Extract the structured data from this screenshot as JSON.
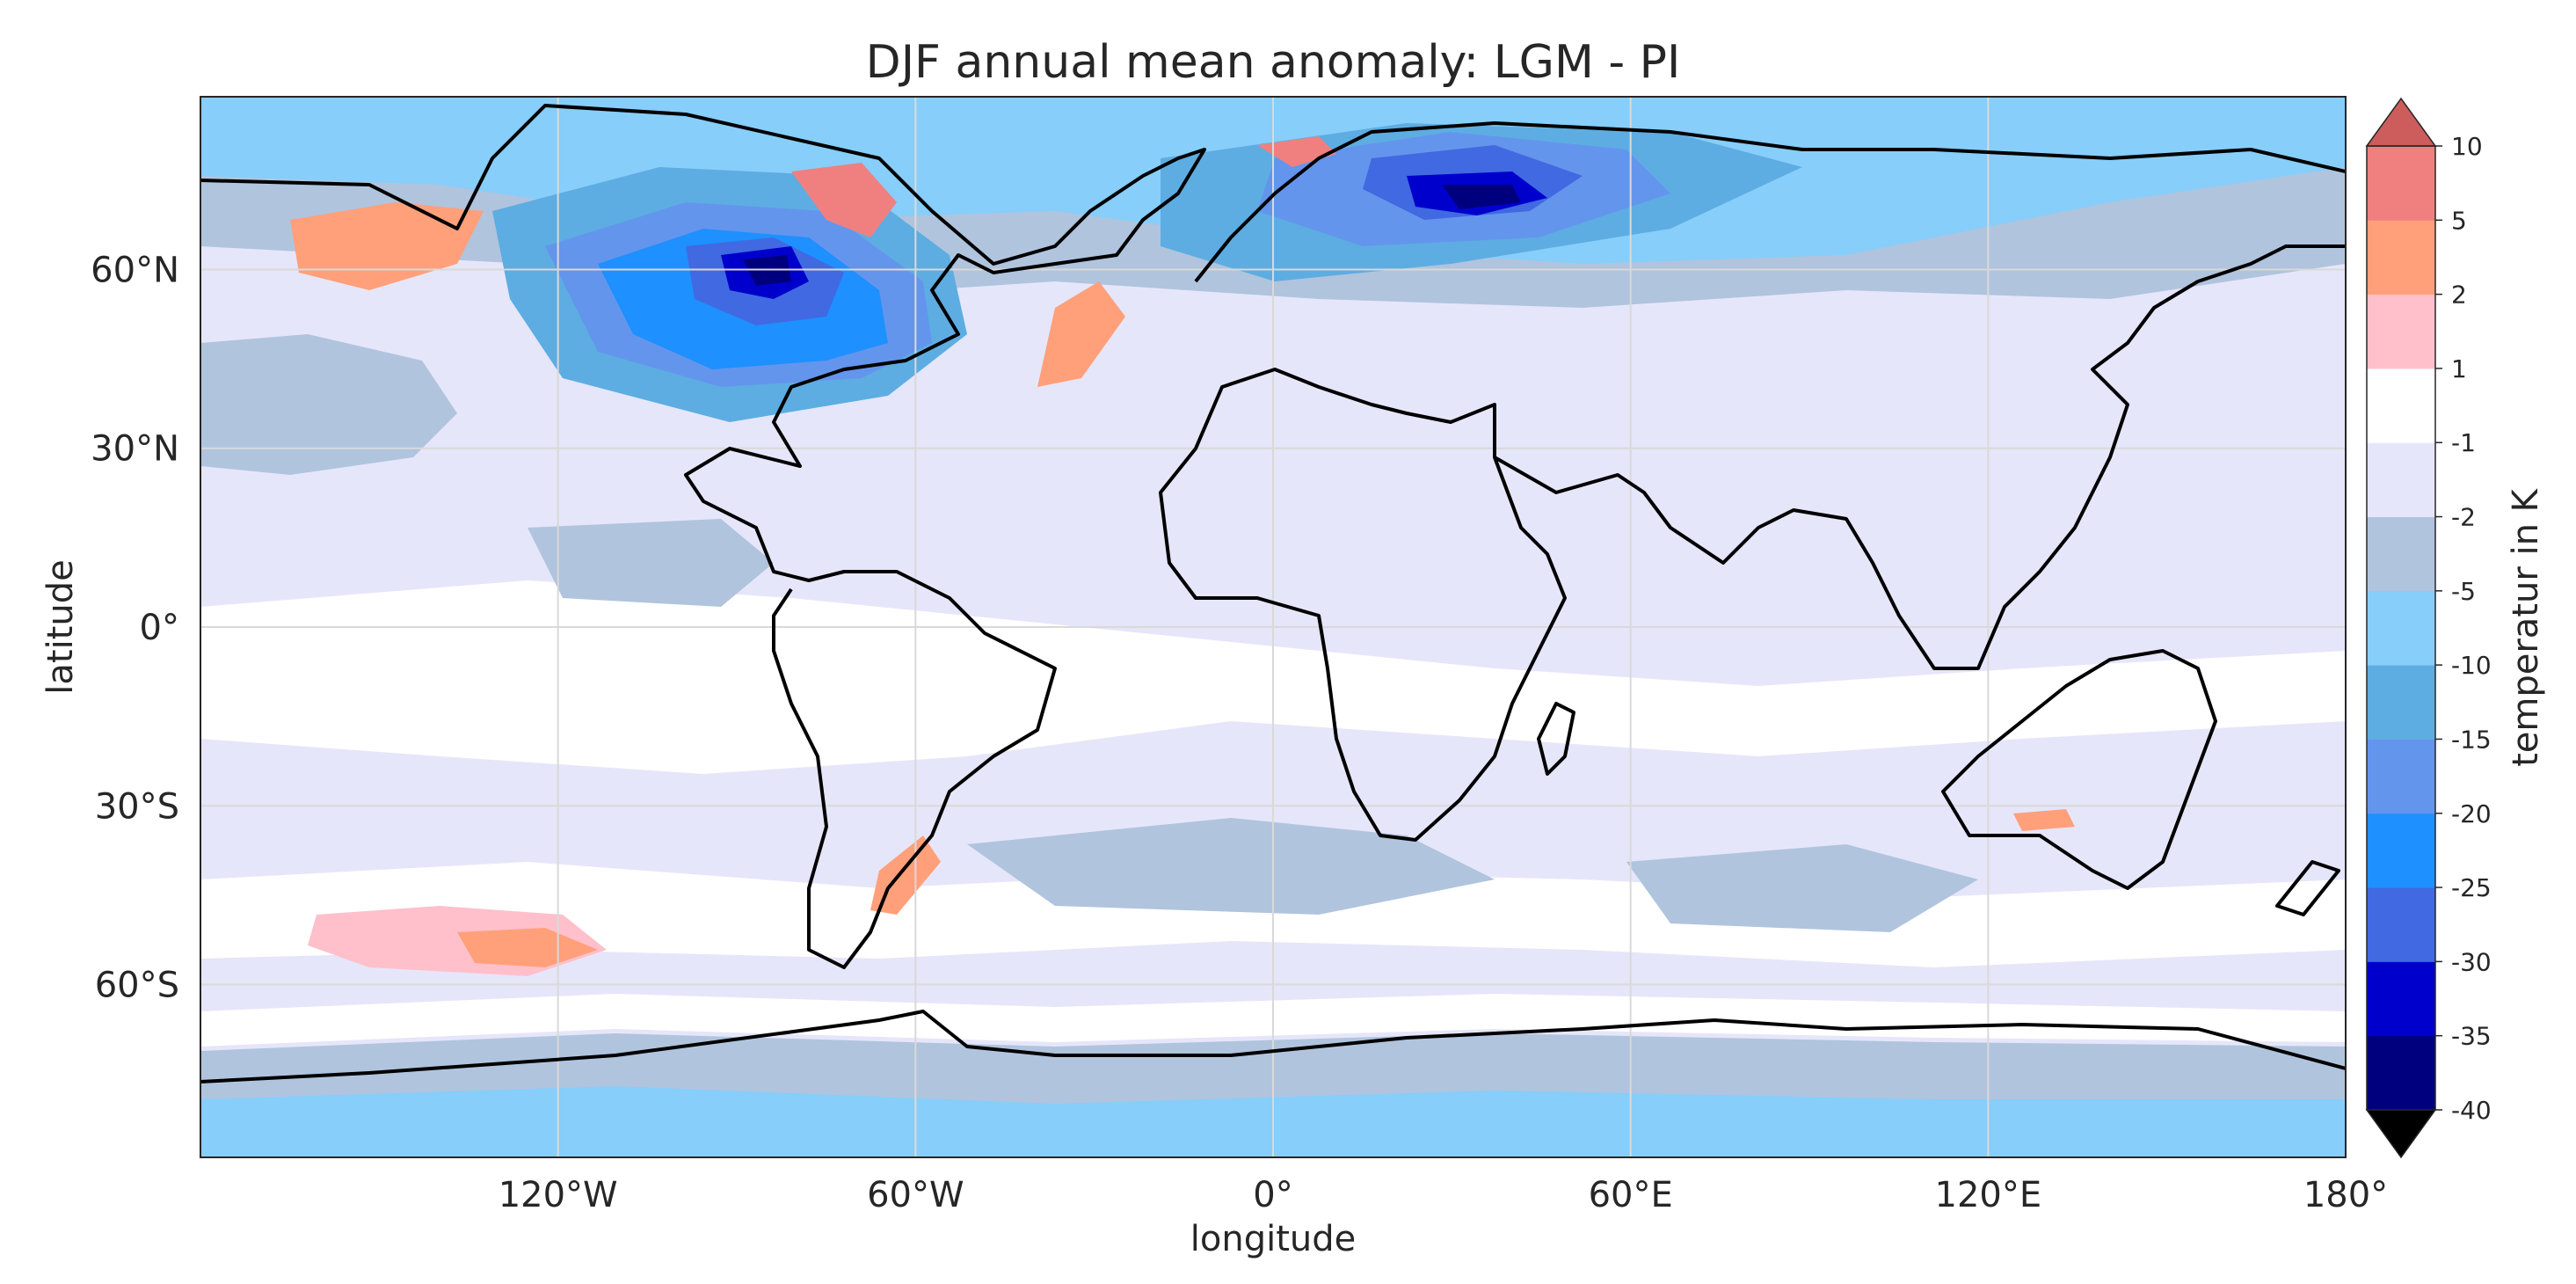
{
  "title": "DJF annual mean anomaly: LGM - PI",
  "x_axis": {
    "label": "longitude",
    "ticks": [
      {
        "value": -120,
        "label": "120°W"
      },
      {
        "value": -60,
        "label": "60°W"
      },
      {
        "value": 0,
        "label": "0°"
      },
      {
        "value": 60,
        "label": "60°E"
      },
      {
        "value": 120,
        "label": "120°E"
      },
      {
        "value": 180,
        "label": "180°"
      }
    ],
    "range": [
      -180,
      180
    ]
  },
  "y_axis": {
    "label": "latitude",
    "ticks": [
      {
        "value": 60,
        "label": "60°N"
      },
      {
        "value": 30,
        "label": "30°N"
      },
      {
        "value": 0,
        "label": "0°"
      },
      {
        "value": -30,
        "label": "30°S"
      },
      {
        "value": -60,
        "label": "60°S"
      }
    ],
    "range": [
      -89,
      89
    ]
  },
  "colorbar": {
    "label": "temperatur in K",
    "extend": "both",
    "levels": [
      -40,
      -35,
      -30,
      -25,
      -20,
      -15,
      -10,
      -5,
      -2,
      -1,
      1,
      2,
      5,
      10
    ],
    "level_labels": [
      "-40",
      "-35",
      "-30",
      "-25",
      "-20",
      "-15",
      "-10",
      "-5",
      "-2",
      "-1",
      "1",
      "2",
      "5",
      "10"
    ],
    "colors": [
      "#00007f",
      "#0000cd",
      "#4169e1",
      "#1e90ff",
      "#6495ed",
      "#5dade2",
      "#87cefa",
      "#b0c4de",
      "#e6e6fa",
      "#ffffff",
      "#ffc0cb",
      "#ffa07a",
      "#f08080"
    ],
    "under_color": "#000000",
    "over_color": "#cd5c5c"
  },
  "grid": true,
  "coastlines": true,
  "ocean_base_color": "#e6e6fa"
}
